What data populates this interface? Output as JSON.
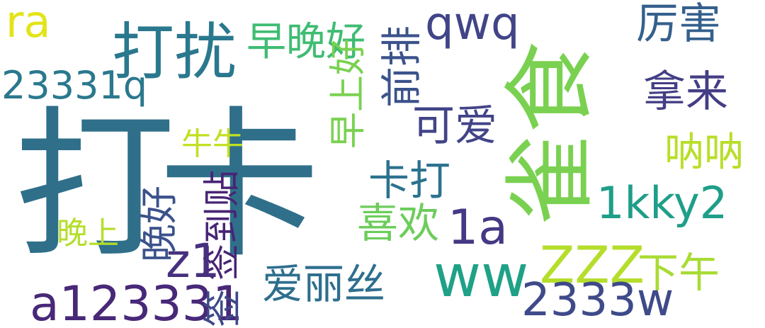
{
  "words": [
    {
      "id": "w0",
      "text": "打卡",
      "color": "#2f6f8a"
    },
    {
      "id": "w1",
      "text": "雀食",
      "color": "#7ad151"
    },
    {
      "id": "w2",
      "text": "打扰",
      "color": "#2a788e"
    },
    {
      "id": "w3",
      "text": "早晚好",
      "color": "#3fbc73"
    },
    {
      "id": "w4",
      "text": "早上好",
      "color": "#7ad151"
    },
    {
      "id": "w5",
      "text": "前排",
      "color": "#3b528b"
    },
    {
      "id": "w6",
      "text": "qwq",
      "color": "#414487"
    },
    {
      "id": "w7",
      "text": "厉害",
      "color": "#35608d"
    },
    {
      "id": "w8",
      "text": "拿来",
      "color": "#433e85"
    },
    {
      "id": "w9",
      "text": "ra",
      "color": "#e3e418"
    },
    {
      "id": "w10",
      "text": "23331q",
      "color": "#2a788e"
    },
    {
      "id": "w11",
      "text": "可爱",
      "color": "#414487"
    },
    {
      "id": "w12",
      "text": "牛牛",
      "color": "#c2df23"
    },
    {
      "id": "w13",
      "text": "呐呐",
      "color": "#b8de29"
    },
    {
      "id": "w14",
      "text": "晚好",
      "color": "#3b528b"
    },
    {
      "id": "w15",
      "text": "卡打",
      "color": "#2c728e"
    },
    {
      "id": "w16",
      "text": "1kky2",
      "color": "#1f9e89"
    },
    {
      "id": "w17",
      "text": "喜欢",
      "color": "#6ccd5a"
    },
    {
      "id": "w18",
      "text": "1a",
      "color": "#443983"
    },
    {
      "id": "w19",
      "text": "签到贴",
      "color": "#482475"
    },
    {
      "id": "w20",
      "text": "晚上",
      "color": "#b5de2b"
    },
    {
      "id": "w21",
      "text": "z1",
      "color": "#46307e"
    },
    {
      "id": "w22",
      "text": "下午",
      "color": "#a8db34"
    },
    {
      "id": "w23",
      "text": "ZZZ",
      "color": "#b5de2b"
    },
    {
      "id": "w24",
      "text": "ww",
      "color": "#1fa187"
    },
    {
      "id": "w25",
      "text": "爱丽丝",
      "color": "#2e6e8e"
    },
    {
      "id": "w26",
      "text": "a123331",
      "color": "#482878"
    },
    {
      "id": "w27",
      "text": "签",
      "color": "#3e4989"
    },
    {
      "id": "w28",
      "text": "2333w",
      "color": "#3e4a89"
    }
  ]
}
